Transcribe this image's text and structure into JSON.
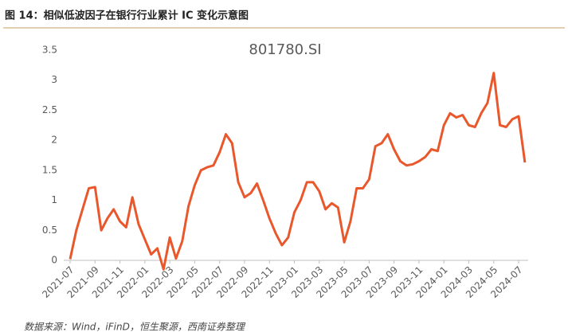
{
  "header": {
    "title": "图 14：相似低波因子在银行行业累计 IC 变化示意图"
  },
  "chart_data": {
    "type": "line",
    "title": "801780.SI",
    "categories": [
      "2021-07",
      null,
      null,
      null,
      "2021-09",
      null,
      null,
      null,
      "2021-11",
      null,
      null,
      null,
      "2022-01",
      null,
      null,
      null,
      "2022-03",
      null,
      null,
      null,
      "2022-05",
      null,
      null,
      null,
      "2022-07",
      null,
      null,
      null,
      "2022-09",
      null,
      null,
      null,
      "2022-11",
      null,
      null,
      null,
      "2023-01",
      null,
      null,
      null,
      "2023-03",
      null,
      null,
      null,
      "2023-05",
      null,
      null,
      null,
      "2023-07",
      null,
      null,
      null,
      "2023-09",
      null,
      null,
      null,
      "2023-11",
      null,
      null,
      null,
      "2024-01",
      null,
      null,
      null,
      "2024-03",
      null,
      null,
      null,
      "2024-05",
      null,
      null,
      null,
      "2024-07",
      null
    ],
    "series": [
      {
        "name": "801780.SI",
        "color": "#e9582c",
        "values": [
          0.02,
          0.5,
          0.85,
          1.2,
          1.22,
          0.5,
          0.7,
          0.85,
          0.65,
          0.55,
          1.05,
          0.6,
          0.35,
          0.1,
          0.2,
          -0.15,
          0.38,
          0.03,
          0.32,
          0.9,
          1.25,
          1.5,
          1.55,
          1.58,
          1.8,
          2.1,
          1.95,
          1.3,
          1.05,
          1.12,
          1.28,
          1.0,
          0.7,
          0.45,
          0.25,
          0.38,
          0.8,
          1.0,
          1.3,
          1.3,
          1.15,
          0.85,
          0.95,
          0.88,
          0.3,
          0.65,
          1.2,
          1.2,
          1.35,
          1.9,
          1.95,
          2.1,
          1.85,
          1.65,
          1.58,
          1.6,
          1.65,
          1.72,
          1.85,
          1.82,
          2.25,
          2.45,
          2.38,
          2.42,
          2.25,
          2.22,
          2.45,
          2.62,
          3.12,
          2.25,
          2.22,
          2.35,
          2.4,
          1.63
        ]
      }
    ],
    "ylim": [
      0,
      3.5
    ],
    "yticks": [
      0,
      0.5,
      1,
      1.5,
      2,
      2.5,
      3,
      3.5
    ],
    "grid": false
  },
  "footer": {
    "source": "数据来源：Wind，iFinD，恒生聚源，西南证券整理"
  }
}
